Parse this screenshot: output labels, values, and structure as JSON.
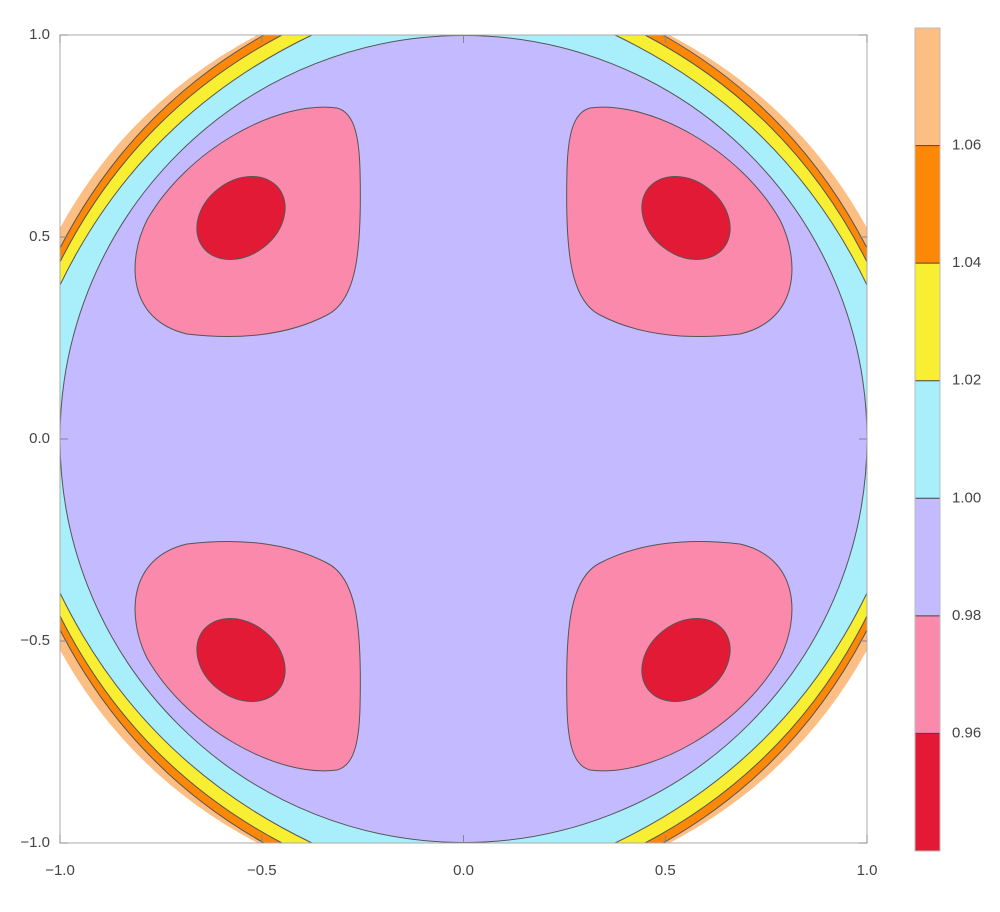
{
  "chart_data": {
    "type": "contour",
    "xlim": [
      -1,
      1
    ],
    "ylim": [
      -1,
      1
    ],
    "xticks": [
      {
        "value": -1,
        "label": "−1.0"
      },
      {
        "value": -0.5,
        "label": "−0.5"
      },
      {
        "value": 0,
        "label": "0.0"
      },
      {
        "value": 0.5,
        "label": "0.5"
      },
      {
        "value": 1,
        "label": "1.0"
      }
    ],
    "yticks": [
      {
        "value": -1,
        "label": "−1.0"
      },
      {
        "value": -0.5,
        "label": "−0.5"
      },
      {
        "value": 0,
        "label": "0.0"
      },
      {
        "value": 0.5,
        "label": "0.5"
      },
      {
        "value": 1,
        "label": "1.0"
      }
    ],
    "colorbar_lim": [
      0.94,
      1.08
    ],
    "colorbar_ticks": [
      0.96,
      0.98,
      {
        "value": 1,
        "label": "1.00"
      },
      1.02,
      1.04,
      1.06
    ],
    "colors": [
      "#e31a35",
      "#fb89ac",
      "#c4baff",
      "#a9eefb",
      "#f8ee32",
      "#fd8706",
      "#fdbe83"
    ]
  }
}
